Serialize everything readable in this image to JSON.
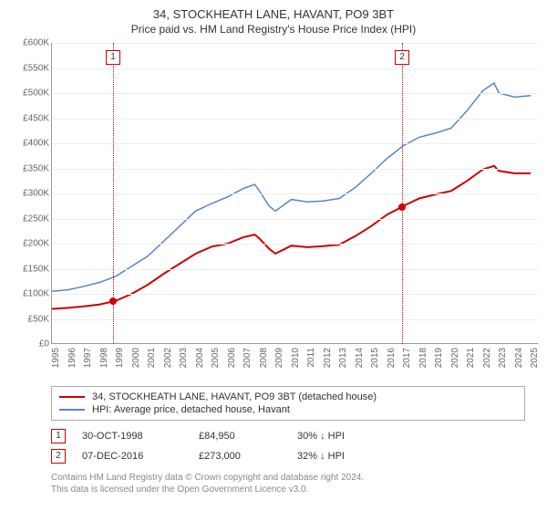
{
  "title": "34, STOCKHEATH LANE, HAVANT, PO9 3BT",
  "subtitle": "Price paid vs. HM Land Registry's House Price Index (HPI)",
  "chart": {
    "type": "line",
    "xlim": [
      1995,
      2025.5
    ],
    "ylim": [
      0,
      600
    ],
    "background_color": "#ffffff",
    "grid_color": "#eeeeee",
    "axis_color": "#999999",
    "tick_color": "#666666",
    "tick_fontsize": 10,
    "y_ticks": [
      0,
      50,
      100,
      150,
      200,
      250,
      300,
      350,
      400,
      450,
      500,
      550,
      600
    ],
    "y_tick_labels": [
      "£0",
      "£50K",
      "£100K",
      "£150K",
      "£200K",
      "£250K",
      "£300K",
      "£350K",
      "£400K",
      "£450K",
      "£500K",
      "£550K",
      "£600K"
    ],
    "x_ticks": [
      1995,
      1996,
      1997,
      1998,
      1999,
      2000,
      2001,
      2002,
      2003,
      2004,
      2005,
      2006,
      2007,
      2008,
      2009,
      2010,
      2011,
      2012,
      2013,
      2014,
      2015,
      2016,
      2017,
      2018,
      2019,
      2020,
      2021,
      2022,
      2023,
      2024,
      2025
    ],
    "series": [
      {
        "name": "property",
        "label": "34, STOCKHEATH LANE, HAVANT, PO9 3BT (detached house)",
        "color": "#cc0000",
        "line_width": 2,
        "points": [
          [
            1995,
            70
          ],
          [
            1996,
            72
          ],
          [
            1997,
            75
          ],
          [
            1998,
            79
          ],
          [
            1998.83,
            85
          ],
          [
            1999,
            86
          ],
          [
            2000,
            100
          ],
          [
            2001,
            118
          ],
          [
            2002,
            140
          ],
          [
            2003,
            160
          ],
          [
            2004,
            180
          ],
          [
            2005,
            194
          ],
          [
            2006,
            200
          ],
          [
            2007,
            213
          ],
          [
            2007.7,
            218
          ],
          [
            2008,
            210
          ],
          [
            2008.6,
            190
          ],
          [
            2009,
            180
          ],
          [
            2010,
            196
          ],
          [
            2011,
            193
          ],
          [
            2012,
            195
          ],
          [
            2013,
            198
          ],
          [
            2014,
            215
          ],
          [
            2015,
            235
          ],
          [
            2016,
            258
          ],
          [
            2016.94,
            273
          ],
          [
            2017,
            275
          ],
          [
            2018,
            290
          ],
          [
            2019,
            298
          ],
          [
            2020,
            305
          ],
          [
            2021,
            325
          ],
          [
            2022,
            348
          ],
          [
            2022.7,
            355
          ],
          [
            2023,
            345
          ],
          [
            2024,
            340
          ],
          [
            2025,
            340
          ]
        ]
      },
      {
        "name": "hpi",
        "label": "HPI: Average price, detached house, Havant",
        "color": "#5b84c4",
        "line_width": 1.5,
        "points": [
          [
            1995,
            105
          ],
          [
            1996,
            108
          ],
          [
            1997,
            115
          ],
          [
            1998,
            123
          ],
          [
            1999,
            135
          ],
          [
            2000,
            155
          ],
          [
            2001,
            175
          ],
          [
            2002,
            205
          ],
          [
            2003,
            235
          ],
          [
            2004,
            265
          ],
          [
            2005,
            280
          ],
          [
            2006,
            293
          ],
          [
            2007,
            310
          ],
          [
            2007.7,
            318
          ],
          [
            2008,
            305
          ],
          [
            2008.6,
            275
          ],
          [
            2009,
            265
          ],
          [
            2010,
            288
          ],
          [
            2011,
            283
          ],
          [
            2012,
            285
          ],
          [
            2013,
            290
          ],
          [
            2014,
            312
          ],
          [
            2015,
            340
          ],
          [
            2016,
            370
          ],
          [
            2017,
            395
          ],
          [
            2018,
            412
          ],
          [
            2019,
            420
          ],
          [
            2020,
            430
          ],
          [
            2021,
            465
          ],
          [
            2022,
            505
          ],
          [
            2022.7,
            520
          ],
          [
            2023,
            500
          ],
          [
            2024,
            492
          ],
          [
            2025,
            495
          ]
        ]
      }
    ],
    "markers": [
      {
        "id": "1",
        "x": 1998.83,
        "y": 85,
        "color": "#cc0000"
      },
      {
        "id": "2",
        "x": 2016.94,
        "y": 273,
        "color": "#cc0000"
      }
    ]
  },
  "transactions": [
    {
      "id": "1",
      "date": "30-OCT-1998",
      "price": "£84,950",
      "diff": "30% ↓ HPI",
      "color": "#cc0000"
    },
    {
      "id": "2",
      "date": "07-DEC-2016",
      "price": "£273,000",
      "diff": "32% ↓ HPI",
      "color": "#cc0000"
    }
  ],
  "footer_line1": "Contains HM Land Registry data © Crown copyright and database right 2024.",
  "footer_line2": "This data is licensed under the Open Government Licence v3.0."
}
